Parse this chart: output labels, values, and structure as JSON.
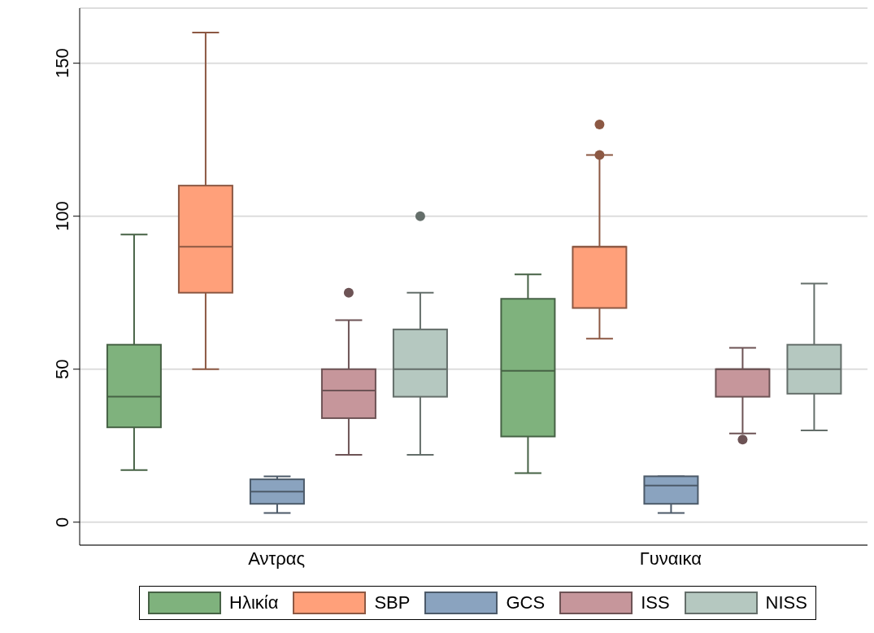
{
  "chart_data": {
    "type": "box",
    "categories": [
      "Αντρας",
      "Γυναικα"
    ],
    "ylim": [
      -7.5,
      168
    ],
    "yticks": [
      0,
      50,
      100,
      150
    ],
    "grid": "y",
    "legend": "bottom",
    "series": [
      {
        "name": "Ηλικία",
        "color": "#7fb27d",
        "boxes": [
          {
            "low": 17,
            "q1": 31,
            "median": 41,
            "q3": 58,
            "high": 94
          },
          {
            "low": 16,
            "q1": 28,
            "median": 49.5,
            "q3": 73,
            "high": 81
          }
        ]
      },
      {
        "name": "SBP",
        "color": "#ffa07a",
        "boxes": [
          {
            "low": 50,
            "q1": 75,
            "median": 90,
            "q3": 110,
            "high": 160
          },
          {
            "low": 60,
            "q1": 70,
            "median": 90,
            "q3": 90,
            "high": 120,
            "outliers": [
              120,
              130
            ]
          }
        ]
      },
      {
        "name": "GCS",
        "color": "#8aa3bf",
        "boxes": [
          {
            "low": 3,
            "q1": 6,
            "median": 10,
            "q3": 14,
            "high": 15
          },
          {
            "low": 3,
            "q1": 6,
            "median": 12,
            "q3": 15,
            "high": 15
          }
        ]
      },
      {
        "name": "ISS",
        "color": "#c6969b",
        "boxes": [
          {
            "low": 22,
            "q1": 34,
            "median": 43,
            "q3": 50,
            "high": 66,
            "outliers": [
              75
            ]
          },
          {
            "low": 29,
            "q1": 41,
            "median": 50,
            "q3": 50,
            "high": 57,
            "outliers": [
              27
            ]
          }
        ]
      },
      {
        "name": "NISS",
        "color": "#b5c8c0",
        "boxes": [
          {
            "low": 22,
            "q1": 41,
            "median": 50,
            "q3": 63,
            "high": 75,
            "outliers": [
              100
            ]
          },
          {
            "low": 30,
            "q1": 42,
            "median": 50,
            "q3": 58,
            "high": 78
          }
        ]
      }
    ]
  }
}
